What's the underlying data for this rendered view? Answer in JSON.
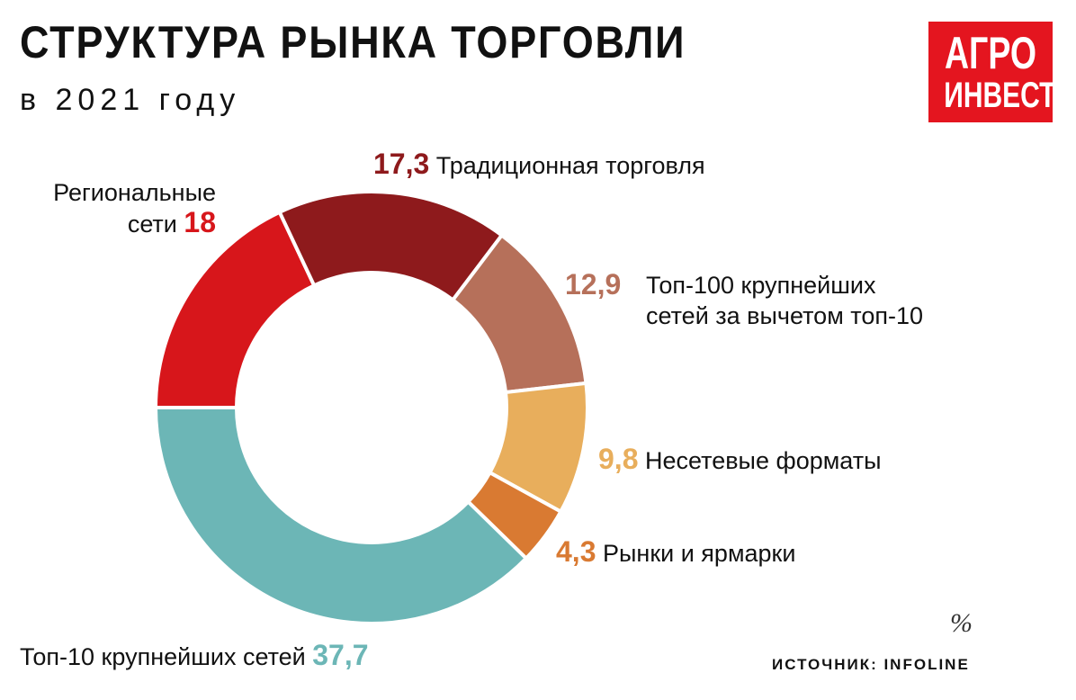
{
  "chart_data": {
    "type": "donut",
    "title": "СТРУКТУРА РЫНКА ТОРГОВЛИ",
    "subtitle": "в 2021 году",
    "categories": [
      "Региональные сети",
      "Традиционная торговля",
      "Топ-100 крупнейших сетей за вычетом топ-10",
      "Несетевые форматы",
      "Рынки и ярмарки",
      "Топ-10 крупнейших сетей"
    ],
    "values": [
      18,
      17.3,
      12.9,
      9.8,
      4.3,
      37.7
    ],
    "value_labels": [
      "18",
      "17,3",
      "12,9",
      "9,8",
      "4,3",
      "37,7"
    ],
    "colors": [
      "#d7161b",
      "#8e1a1c",
      "#b6705a",
      "#e8ae5c",
      "#d97a32",
      "#6cb6b6"
    ],
    "unit": "%",
    "source": "ИСТОЧНИК: INFOLINE",
    "logo": [
      "АГРО",
      "ИНВЕСТОР"
    ]
  }
}
